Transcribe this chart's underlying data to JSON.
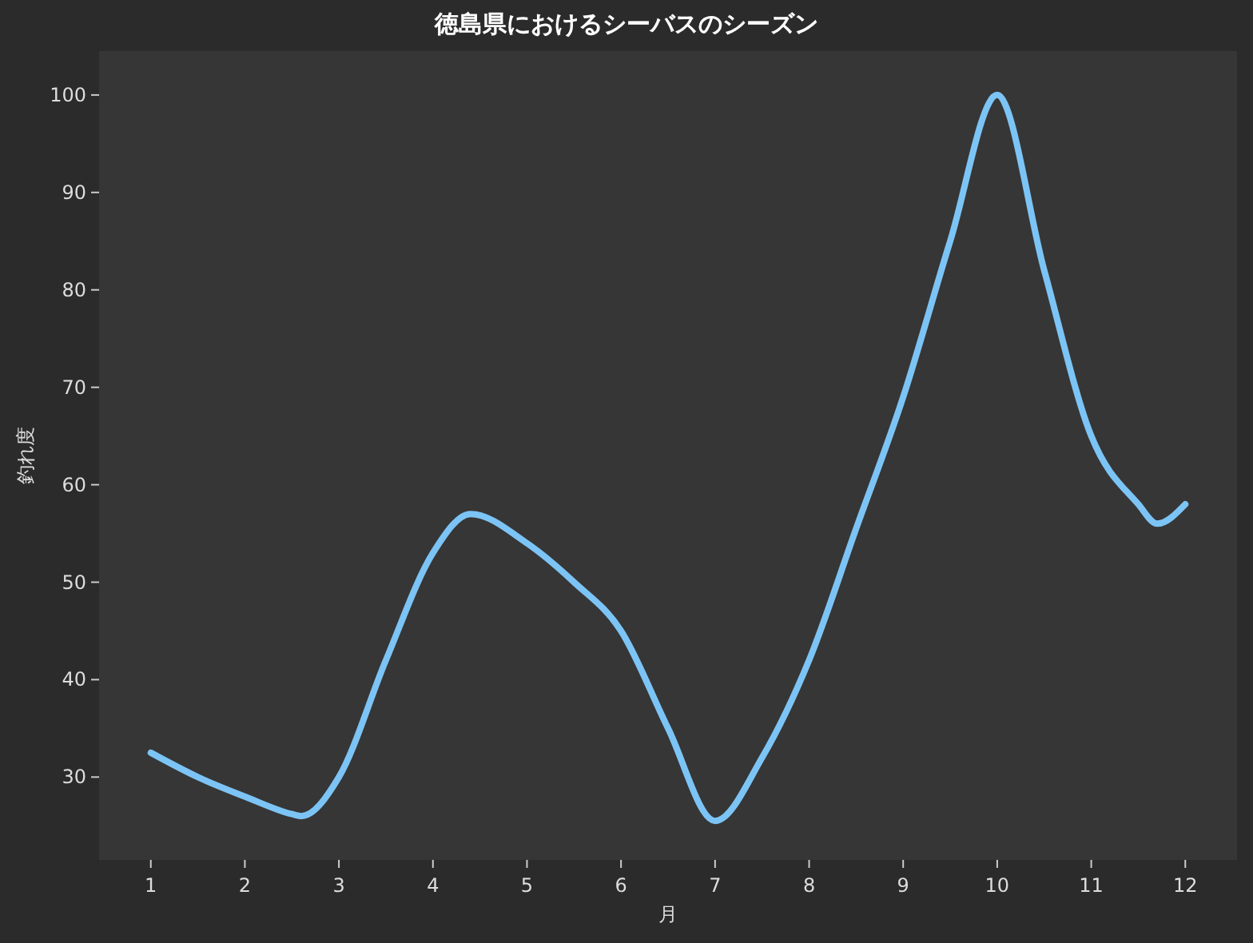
{
  "chart_data": {
    "type": "line",
    "title": "徳島県におけるシーバスのシーズン",
    "xlabel": "月",
    "ylabel": "釣れ度",
    "x": [
      1,
      1.5,
      2,
      2.5,
      2.6,
      3,
      3.5,
      4,
      4.4,
      5,
      5.5,
      6,
      6.5,
      7,
      7.5,
      8,
      8.5,
      9,
      9.5,
      10,
      10.5,
      11,
      11.5,
      11.7,
      12
    ],
    "series": [
      {
        "color": "#7cc4f5",
        "values": [
          32.5,
          30,
          28,
          26.2,
          26,
          30,
          42,
          53,
          57,
          54,
          50,
          45,
          35,
          25.5,
          32,
          42,
          55.5,
          69,
          85,
          100,
          82,
          65,
          58,
          56,
          58
        ]
      }
    ],
    "xlim": [
      0.45,
      12.55
    ],
    "ylim": [
      21.5,
      104.5
    ],
    "xticks": [
      1,
      2,
      3,
      4,
      5,
      6,
      7,
      8,
      9,
      10,
      11,
      12
    ],
    "yticks": [
      30,
      40,
      50,
      60,
      70,
      80,
      90,
      100
    ],
    "grid": false,
    "marker": "none",
    "line_style": "solid"
  }
}
